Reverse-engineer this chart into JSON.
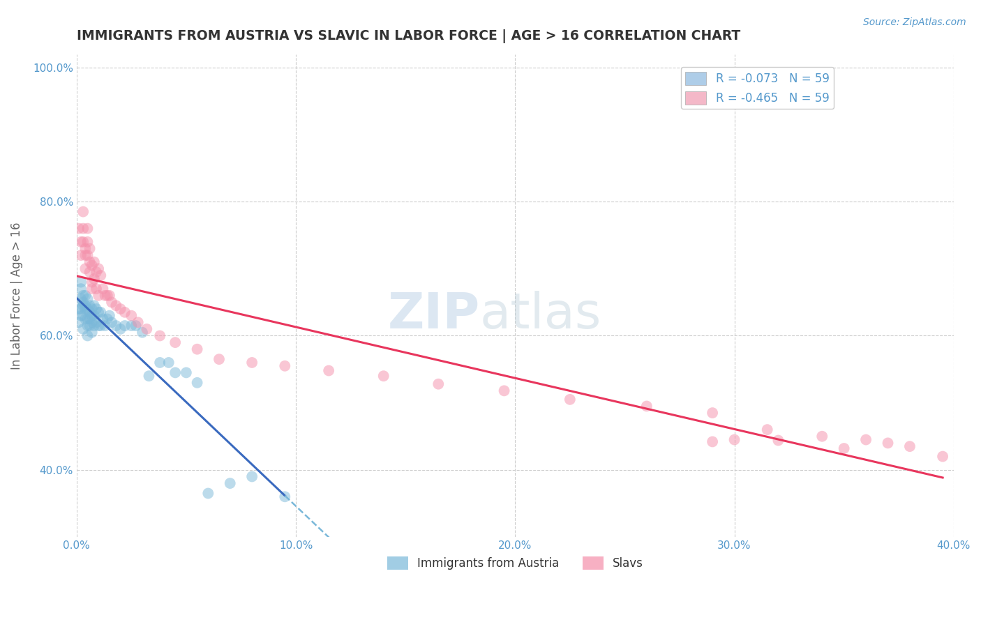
{
  "title": "IMMIGRANTS FROM AUSTRIA VS SLAVIC IN LABOR FORCE | AGE > 16 CORRELATION CHART",
  "source_text": "Source: ZipAtlas.com",
  "ylabel": "In Labor Force | Age > 16",
  "xlim": [
    0.0,
    0.4
  ],
  "ylim": [
    0.3,
    1.02
  ],
  "xticks": [
    0.0,
    0.1,
    0.2,
    0.3,
    0.4
  ],
  "yticks": [
    0.4,
    0.6,
    0.8,
    1.0
  ],
  "austria_R": -0.073,
  "slavic_R": -0.465,
  "N": 59,
  "watermark_zip": "ZIP",
  "watermark_atlas": "atlas",
  "austria_scatter_color": "#7ab8d9",
  "slavic_scatter_color": "#f48faa",
  "austria_line_color": "#3a6abf",
  "slavic_line_color": "#e8365d",
  "austria_dash_color": "#7ab8d9",
  "background_color": "#ffffff",
  "grid_color": "#cccccc",
  "title_color": "#333333",
  "axis_label_color": "#666666",
  "tick_color": "#5599cc",
  "austria_legend_color": "#aecde8",
  "slavic_legend_color": "#f4b8c8",
  "austria_x": [
    0.001,
    0.001,
    0.002,
    0.002,
    0.002,
    0.002,
    0.002,
    0.003,
    0.003,
    0.003,
    0.003,
    0.003,
    0.004,
    0.004,
    0.004,
    0.004,
    0.005,
    0.005,
    0.005,
    0.005,
    0.005,
    0.006,
    0.006,
    0.006,
    0.006,
    0.007,
    0.007,
    0.007,
    0.007,
    0.008,
    0.008,
    0.008,
    0.009,
    0.009,
    0.01,
    0.01,
    0.011,
    0.011,
    0.012,
    0.013,
    0.014,
    0.015,
    0.016,
    0.018,
    0.02,
    0.022,
    0.025,
    0.027,
    0.03,
    0.033,
    0.038,
    0.042,
    0.045,
    0.05,
    0.055,
    0.06,
    0.07,
    0.08,
    0.095
  ],
  "austria_y": [
    0.62,
    0.64,
    0.63,
    0.655,
    0.67,
    0.68,
    0.64,
    0.66,
    0.65,
    0.63,
    0.645,
    0.61,
    0.66,
    0.645,
    0.625,
    0.64,
    0.655,
    0.64,
    0.625,
    0.615,
    0.6,
    0.645,
    0.635,
    0.625,
    0.615,
    0.64,
    0.63,
    0.62,
    0.605,
    0.645,
    0.63,
    0.615,
    0.64,
    0.62,
    0.635,
    0.615,
    0.635,
    0.615,
    0.625,
    0.615,
    0.625,
    0.63,
    0.62,
    0.615,
    0.61,
    0.615,
    0.615,
    0.615,
    0.605,
    0.54,
    0.56,
    0.56,
    0.545,
    0.545,
    0.53,
    0.365,
    0.38,
    0.39,
    0.36
  ],
  "slavic_x": [
    0.001,
    0.002,
    0.002,
    0.003,
    0.003,
    0.003,
    0.004,
    0.004,
    0.004,
    0.005,
    0.005,
    0.005,
    0.006,
    0.006,
    0.006,
    0.007,
    0.007,
    0.007,
    0.008,
    0.008,
    0.009,
    0.009,
    0.01,
    0.01,
    0.011,
    0.012,
    0.013,
    0.014,
    0.015,
    0.016,
    0.018,
    0.02,
    0.022,
    0.025,
    0.028,
    0.032,
    0.038,
    0.045,
    0.055,
    0.065,
    0.08,
    0.095,
    0.115,
    0.14,
    0.165,
    0.195,
    0.225,
    0.26,
    0.29,
    0.315,
    0.34,
    0.36,
    0.37,
    0.38,
    0.395,
    0.3,
    0.35,
    0.32,
    0.29
  ],
  "slavic_y": [
    0.76,
    0.74,
    0.72,
    0.785,
    0.76,
    0.74,
    0.73,
    0.72,
    0.7,
    0.76,
    0.74,
    0.72,
    0.73,
    0.71,
    0.695,
    0.705,
    0.68,
    0.67,
    0.71,
    0.685,
    0.695,
    0.67,
    0.7,
    0.66,
    0.69,
    0.67,
    0.66,
    0.66,
    0.66,
    0.65,
    0.645,
    0.64,
    0.635,
    0.63,
    0.62,
    0.61,
    0.6,
    0.59,
    0.58,
    0.565,
    0.56,
    0.555,
    0.548,
    0.54,
    0.528,
    0.518,
    0.505,
    0.495,
    0.485,
    0.46,
    0.45,
    0.445,
    0.44,
    0.435,
    0.42,
    0.445,
    0.432,
    0.444,
    0.442
  ]
}
